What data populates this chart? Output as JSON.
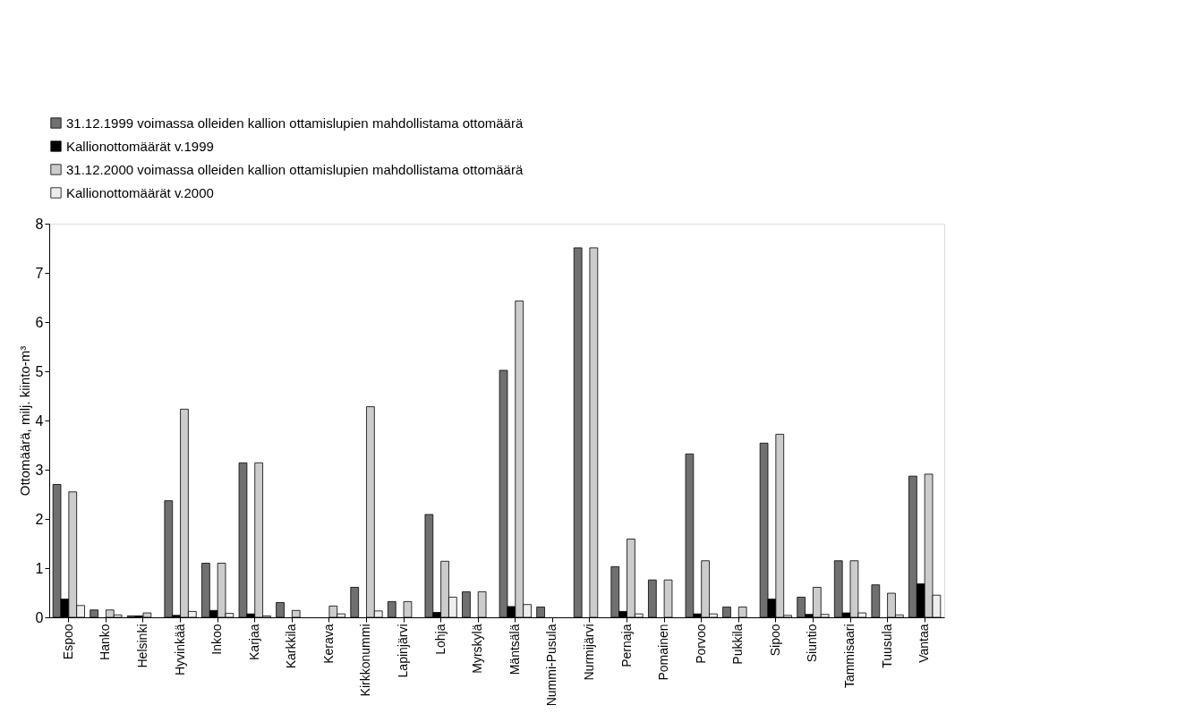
{
  "chart_data": {
    "type": "bar",
    "ylabel": "Ottomäärä, milj. kiinto-m³",
    "categories": [
      "Espoo",
      "Hanko",
      "Helsinki",
      "Hyvinkää",
      "Inkoo",
      "Karjaa",
      "Karkkila",
      "Kerava",
      "Kirkkonummi",
      "Lapinjärvi",
      "Lohja",
      "Myrskylä",
      "Mäntsälä",
      "Nummi-Pusula",
      "Nurmijärvi",
      "Pernaja",
      "Pomainen",
      "Porvoo",
      "Pukkila",
      "Sipoo",
      "Siuntio",
      "Tammisaari",
      "Tuusula",
      "Vantaa"
    ],
    "series": [
      {
        "name": "31.12.1999 voimassa olleiden kallion ottamislupien mahdollistama ottomäärä",
        "color": "#707070",
        "values": [
          2.7,
          0.15,
          0.03,
          2.37,
          1.1,
          3.14,
          0.3,
          null,
          0.61,
          0.32,
          2.09,
          0.52,
          5.02,
          0.21,
          7.51,
          1.03,
          0.76,
          3.32,
          0.21,
          3.54,
          0.41,
          1.15,
          0.66,
          2.87
        ]
      },
      {
        "name": "Kallionottomäärät v.1999",
        "color": "#000000",
        "values": [
          0.37,
          null,
          0.03,
          0.04,
          0.14,
          0.07,
          null,
          null,
          null,
          null,
          0.1,
          null,
          0.22,
          null,
          null,
          0.12,
          null,
          0.07,
          null,
          0.37,
          0.06,
          0.09,
          null,
          0.68
        ]
      },
      {
        "name": "31.12.2000 voimassa olleiden kallion ottamislupien mahdollistama ottomäärä",
        "color": "#cccccc",
        "values": [
          2.55,
          0.15,
          0.09,
          4.23,
          1.1,
          3.14,
          0.14,
          0.23,
          4.28,
          0.32,
          1.14,
          0.52,
          6.43,
          null,
          7.51,
          1.59,
          0.76,
          1.15,
          0.21,
          3.72,
          0.61,
          1.15,
          0.49,
          2.91
        ]
      },
      {
        "name": "Kallionottomäärät v.2000",
        "color": "#eeeeee",
        "values": [
          0.24,
          0.05,
          null,
          0.12,
          0.08,
          0.03,
          null,
          0.07,
          0.13,
          null,
          0.41,
          null,
          0.26,
          null,
          null,
          0.07,
          null,
          0.07,
          null,
          0.04,
          0.06,
          0.09,
          0.05,
          0.45
        ]
      }
    ],
    "ylim": [
      0,
      8
    ],
    "yticks": [
      0,
      1,
      2,
      3,
      4,
      5,
      6,
      7,
      8
    ],
    "grid": false,
    "legend": "top left"
  }
}
